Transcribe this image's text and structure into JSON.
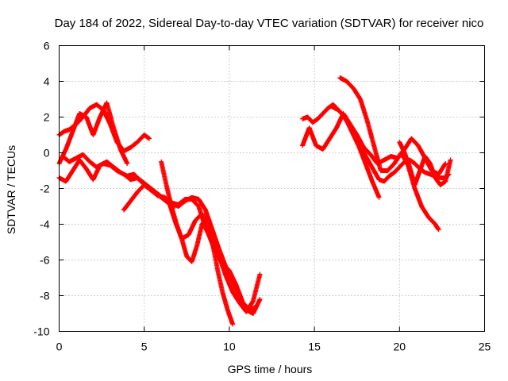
{
  "chart_data": {
    "type": "scatter",
    "title": "Day 184 of 2022, Sidereal Day-to-day VTEC variation (SDTVAR) for receiver nico",
    "xlabel": "GPS time / hours",
    "ylabel": "SDTVAR / TECUs",
    "xlim": [
      0,
      25
    ],
    "ylim": [
      -10,
      6
    ],
    "xticks": [
      0,
      5,
      10,
      15,
      20,
      25
    ],
    "yticks": [
      -10,
      -8,
      -6,
      -4,
      -2,
      0,
      2,
      4,
      6
    ],
    "xtick_labels": [
      "0",
      "5",
      "10",
      "15",
      "20",
      "25"
    ],
    "ytick_labels": [
      "-10",
      "-8",
      "-6",
      "-4",
      "-2",
      "0",
      "2",
      "4",
      "6"
    ],
    "grid": true,
    "marker": "+",
    "color": "#ff0000",
    "series": [
      {
        "name": "track-a",
        "x": [
          0.0,
          0.3,
          0.6,
          1.0,
          1.4,
          1.8,
          2.2,
          2.6,
          3.0,
          3.4,
          3.8,
          4.2,
          4.6,
          5.0,
          5.3
        ],
        "y": [
          1.0,
          1.2,
          1.3,
          1.6,
          2.0,
          2.5,
          2.7,
          2.4,
          1.6,
          0.6,
          0.1,
          0.3,
          0.6,
          1.0,
          0.8
        ]
      },
      {
        "name": "track-b",
        "x": [
          0.0,
          0.4,
          0.8,
          1.2,
          1.6,
          2.0,
          2.4,
          2.8,
          3.2,
          3.6,
          4.0
        ],
        "y": [
          -0.6,
          0.2,
          1.2,
          2.2,
          2.0,
          1.0,
          2.0,
          2.8,
          1.4,
          0.2,
          -0.6
        ]
      },
      {
        "name": "track-c",
        "x": [
          0.0,
          0.4,
          0.8,
          1.2,
          1.6,
          2.0,
          2.4,
          2.8,
          3.2,
          3.6,
          4.0,
          4.4,
          4.8,
          5.2,
          5.6,
          6.0,
          6.4,
          6.8
        ],
        "y": [
          -1.4,
          -1.6,
          -1.0,
          -0.4,
          -0.9,
          -1.5,
          -0.7,
          -0.5,
          -0.8,
          -1.1,
          -1.3,
          -1.2,
          -1.6,
          -1.9,
          -2.2,
          -2.5,
          -2.8,
          -3.0
        ]
      },
      {
        "name": "track-d",
        "x": [
          0.2,
          0.6,
          1.0,
          1.4,
          1.8,
          2.2,
          2.6,
          3.0,
          3.4,
          3.8,
          4.2,
          4.6,
          5.0,
          5.4,
          5.8,
          6.2,
          6.6,
          7.0,
          7.4,
          7.8,
          8.2,
          8.6,
          9.0,
          9.4,
          9.8,
          10.2,
          10.6,
          11.0,
          11.4,
          11.8
        ],
        "y": [
          -0.2,
          -0.5,
          -0.3,
          -0.1,
          -0.5,
          -0.8,
          -0.6,
          -0.7,
          -1.0,
          -1.2,
          -1.5,
          -1.4,
          -1.7,
          -2.0,
          -2.3,
          -2.6,
          -2.8,
          -2.9,
          -2.6,
          -2.6,
          -3.0,
          -4.2,
          -5.0,
          -5.8,
          -6.9,
          -7.8,
          -8.4,
          -8.9,
          -8.3,
          -6.8
        ]
      },
      {
        "name": "track-e",
        "x": [
          3.8,
          4.2,
          4.6,
          5.0,
          5.4,
          5.8,
          6.2,
          6.6,
          7.0,
          7.4,
          7.8,
          8.2,
          8.6,
          9.0,
          9.4,
          9.8,
          10.2,
          10.6,
          11.0,
          11.4,
          11.8
        ],
        "y": [
          -3.2,
          -2.7,
          -2.2,
          -1.8,
          -2.1,
          -2.4,
          -2.5,
          -2.8,
          -3.0,
          -2.7,
          -2.5,
          -2.6,
          -3.2,
          -4.3,
          -5.4,
          -6.4,
          -7.2,
          -8.1,
          -8.8,
          -9.0,
          -8.2
        ]
      },
      {
        "name": "track-f",
        "x": [
          6.0,
          6.3,
          6.6,
          6.9,
          7.2,
          7.5,
          7.8,
          8.1,
          8.4,
          8.7,
          9.0,
          9.3,
          9.6,
          9.9,
          10.2
        ],
        "y": [
          -0.5,
          -1.8,
          -3.0,
          -4.0,
          -4.8,
          -5.8,
          -6.1,
          -5.2,
          -4.0,
          -3.6,
          -5.0,
          -6.5,
          -7.8,
          -8.8,
          -9.6
        ]
      },
      {
        "name": "track-g",
        "x": [
          6.4,
          6.8,
          7.2,
          7.6,
          8.0,
          8.4,
          8.8,
          9.2,
          9.6,
          10.0,
          10.4,
          10.8,
          11.2,
          11.6
        ],
        "y": [
          -2.6,
          -3.8,
          -4.8,
          -4.6,
          -3.8,
          -3.4,
          -4.6,
          -5.6,
          -6.2,
          -6.6,
          -7.4,
          -8.4,
          -8.8,
          -8.6
        ]
      },
      {
        "name": "track-h",
        "x": [
          14.3,
          14.6,
          14.9,
          15.2,
          15.5,
          15.8,
          16.1,
          16.4,
          16.7,
          17.0,
          17.3,
          17.6,
          17.9,
          18.2,
          18.5,
          18.8,
          19.1,
          19.4,
          19.7,
          20.0,
          20.3,
          20.6,
          20.9,
          21.2,
          21.5,
          21.8,
          22.1,
          22.4,
          22.7,
          22.9
        ],
        "y": [
          1.9,
          2.0,
          1.7,
          1.9,
          2.2,
          2.5,
          2.7,
          2.4,
          2.1,
          1.6,
          1.0,
          0.4,
          0.0,
          -0.5,
          -1.0,
          -1.5,
          -1.6,
          -1.3,
          -1.1,
          -0.8,
          -0.5,
          -0.4,
          -0.6,
          -0.9,
          -1.1,
          -1.2,
          -1.3,
          -1.4,
          -1.4,
          -1.2
        ]
      },
      {
        "name": "track-i",
        "x": [
          14.3,
          14.7,
          15.1,
          15.5,
          15.9,
          16.3,
          16.7,
          17.1,
          17.5,
          17.9,
          18.3,
          18.7,
          19.1,
          19.5,
          19.9,
          20.3,
          20.7,
          21.1,
          21.5,
          21.9,
          22.3,
          22.7
        ],
        "y": [
          0.4,
          1.4,
          0.4,
          0.2,
          0.8,
          1.4,
          2.2,
          1.6,
          1.0,
          0.3,
          -0.1,
          -0.6,
          -0.4,
          -0.2,
          -0.3,
          0.2,
          0.8,
          0.4,
          -0.3,
          -1.0,
          -1.2,
          -0.6
        ]
      },
      {
        "name": "track-j",
        "x": [
          16.5,
          16.9,
          17.3,
          17.7,
          18.1,
          18.5,
          18.9,
          19.3,
          19.7,
          20.1,
          20.5,
          20.9,
          21.3,
          21.7,
          22.1,
          22.3
        ],
        "y": [
          4.2,
          4.0,
          3.6,
          3.0,
          1.8,
          0.4,
          -1.0,
          -1.0,
          -0.6,
          0.0,
          -0.7,
          -2.0,
          -3.0,
          -3.6,
          -4.0,
          -4.3
        ]
      },
      {
        "name": "track-k",
        "x": [
          16.0,
          16.4,
          16.8,
          17.2,
          17.6,
          18.0,
          18.4,
          18.8
        ],
        "y": [
          2.6,
          2.4,
          2.0,
          1.2,
          0.4,
          -0.6,
          -1.6,
          -2.5
        ]
      },
      {
        "name": "track-l",
        "x": [
          20.0,
          20.3,
          20.6,
          20.9,
          21.2,
          21.5,
          21.8,
          22.1,
          22.4,
          22.7,
          23.0
        ],
        "y": [
          0.6,
          0.0,
          -0.8,
          -1.8,
          -1.0,
          -0.2,
          -0.6,
          -1.4,
          -1.8,
          -1.6,
          -0.4
        ]
      }
    ]
  }
}
